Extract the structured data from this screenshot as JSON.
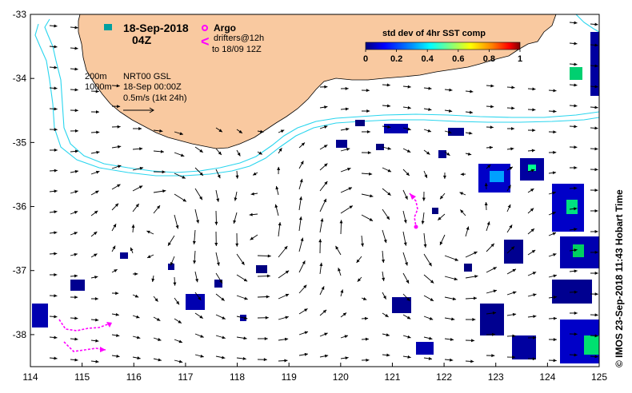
{
  "header": {
    "date": "18-Sep-2018",
    "time": "04Z",
    "argo_label": "Argo",
    "drifters_label": "drifters@12h",
    "drifters_to": "to 18/09 12Z"
  },
  "legend": {
    "title": "std dev of 4hr SST comp",
    "ticks": [
      "0",
      "0.2",
      "0.4",
      "0.6",
      "0.8",
      "1"
    ],
    "range": [
      0,
      1
    ],
    "colors": [
      "#000080",
      "#0000ff",
      "#0080ff",
      "#00ffff",
      "#80ff80",
      "#ffff00",
      "#ff8000",
      "#ff0000",
      "#800000"
    ]
  },
  "contours_label": {
    "c200": "200m",
    "c1000": "1000m"
  },
  "velocity_info": {
    "product": "NRT00 GSL",
    "valid": "18-Sep 00:00Z",
    "scale": "0.5m/s (1kt 24h)"
  },
  "axes": {
    "x_ticks": [
      "114",
      "115",
      "116",
      "117",
      "118",
      "119",
      "120",
      "121",
      "122",
      "123",
      "124",
      "125"
    ],
    "y_ticks": [
      "-33",
      "-34",
      "-35",
      "-36",
      "-37",
      "-38"
    ],
    "lon_range": [
      114,
      125
    ],
    "lat_range": [
      -38.5,
      -33
    ]
  },
  "credit": "IMOS 23-Sep-2018 11:43 Hobart Time",
  "colors": {
    "land": "#f9c9a0",
    "contour": "#29d5ee",
    "argo": "#ff00ff",
    "drifter": "#ff00ff",
    "arrow": "#000000"
  }
}
